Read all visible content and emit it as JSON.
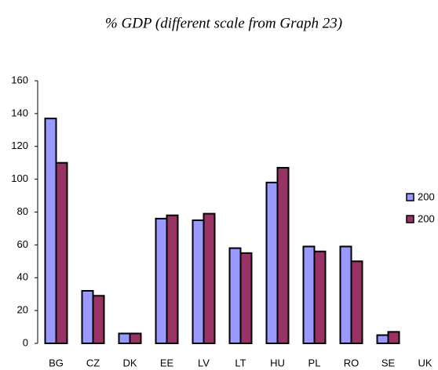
{
  "chart_data": {
    "type": "bar",
    "title": "% GDP (different scale from Graph 23)",
    "categories": [
      "BG",
      "CZ",
      "DK",
      "EE",
      "LV",
      "LT",
      "HU",
      "PL",
      "RO",
      "SE",
      "UK"
    ],
    "series": [
      {
        "name": "200",
        "color": "#9999ff",
        "values": [
          137,
          32,
          6,
          76,
          75,
          58,
          98,
          59,
          59,
          5,
          null
        ]
      },
      {
        "name": "200",
        "color": "#993366",
        "values": [
          110,
          29,
          6,
          78,
          79,
          55,
          107,
          56,
          50,
          7,
          null
        ]
      }
    ],
    "ylim": [
      0,
      160
    ],
    "yticks": [
      0,
      20,
      40,
      60,
      80,
      100,
      120,
      140,
      160
    ],
    "grid": false,
    "legend": "right"
  }
}
